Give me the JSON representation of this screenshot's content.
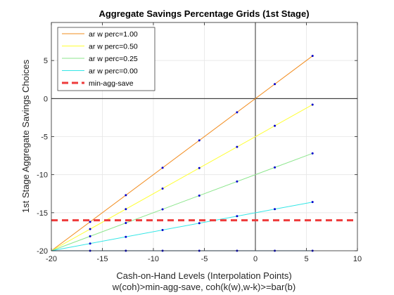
{
  "chart_data": {
    "type": "line",
    "title": "Aggregate Savings Percentage Grids (1st Stage)",
    "xlabel": "Cash-on-Hand Levels (Interpolation Points)",
    "xlabel2": "w(coh)>min-agg-save, coh(k(w),w-k)>=bar(b)",
    "ylabel": "1st Stage Aggregate Savings Choices",
    "xlim": [
      -20,
      10
    ],
    "ylim": [
      -20,
      10
    ],
    "xticks": [
      -20,
      -15,
      -10,
      -5,
      0,
      5,
      10
    ],
    "yticks": [
      -20,
      -15,
      -10,
      -5,
      0,
      5
    ],
    "x_tick_labels": [
      "-20",
      "-15",
      "-10",
      "-5",
      "0",
      "5",
      "10"
    ],
    "y_tick_labels": [
      "-20",
      "-15",
      "-10",
      "-5",
      "0",
      "5"
    ],
    "grid": true,
    "legend_position": "top-left",
    "series": [
      {
        "name": "ar w perc=1.00",
        "color": "#f28c1e"
      },
      {
        "name": "ar w perc=0.50",
        "color": "#ffff33"
      },
      {
        "name": "ar w perc=0.25",
        "color": "#8ce68c"
      },
      {
        "name": "ar w perc=0.00",
        "color": "#33e6e6"
      },
      {
        "name": "min-agg-save",
        "color": "#ee3b3b",
        "dashed": true
      }
    ],
    "fan_lines": [
      {
        "color": "#f28c1e",
        "x": [
          -20,
          5.7
        ],
        "y": [
          -20,
          5.7
        ]
      },
      {
        "color": "#ffff33",
        "x": [
          -20,
          5.7
        ],
        "y": [
          -20,
          -0.73
        ]
      },
      {
        "color": "#8ce68c",
        "x": [
          -20,
          5.7
        ],
        "y": [
          -20,
          -7.15
        ]
      },
      {
        "color": "#33e6e6",
        "x": [
          -20,
          5.7
        ],
        "y": [
          -20,
          -13.58
        ]
      },
      {
        "color": "#1f6fb4",
        "x": [
          -20,
          5.7
        ],
        "y": [
          -20,
          -20
        ]
      }
    ],
    "reference_line": {
      "y": -16,
      "color": "#ee3b3b",
      "name": "min-agg-save"
    },
    "points": {
      "x": [
        -16.2,
        -12.7,
        -9.1,
        -5.5,
        -1.8,
        1.9,
        5.6
      ],
      "fractions": [
        1.0,
        0.75,
        0.5,
        0.25,
        0.0
      ],
      "base": -20,
      "color": "#0000cc"
    }
  }
}
